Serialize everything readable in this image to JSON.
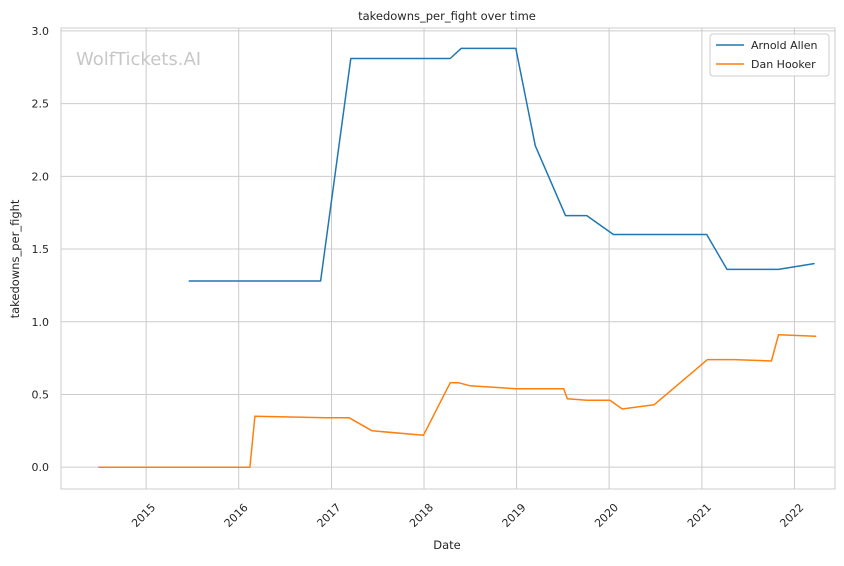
{
  "chart_data": {
    "type": "line",
    "title": "takedowns_per_fight over time",
    "xlabel": "Date",
    "ylabel": "takedowns_per_fight",
    "watermark": "WolfTickets.AI",
    "xlim": [
      "2014-01-30",
      "2022-06-10"
    ],
    "ylim": [
      -0.15,
      3.02
    ],
    "grid": true,
    "legend_position": "top-right",
    "x_ticks": [
      {
        "date": "2015-01-01",
        "label": "2015"
      },
      {
        "date": "2016-01-01",
        "label": "2016"
      },
      {
        "date": "2017-01-01",
        "label": "2017"
      },
      {
        "date": "2018-01-01",
        "label": "2018"
      },
      {
        "date": "2019-01-01",
        "label": "2019"
      },
      {
        "date": "2020-01-01",
        "label": "2020"
      },
      {
        "date": "2021-01-01",
        "label": "2021"
      },
      {
        "date": "2022-01-01",
        "label": "2022"
      }
    ],
    "y_ticks": [
      {
        "value": 0.0,
        "label": "0.0"
      },
      {
        "value": 0.5,
        "label": "0.5"
      },
      {
        "value": 1.0,
        "label": "1.0"
      },
      {
        "value": 1.5,
        "label": "1.5"
      },
      {
        "value": 2.0,
        "label": "2.0"
      },
      {
        "value": 2.5,
        "label": "2.5"
      },
      {
        "value": 3.0,
        "label": "3.0"
      }
    ],
    "series": [
      {
        "name": "Arnold Allen",
        "color": "#1f77b4",
        "points": [
          {
            "x": "2015-06-20",
            "y": 1.28
          },
          {
            "x": "2016-11-19",
            "y": 1.28
          },
          {
            "x": "2017-03-18",
            "y": 2.81
          },
          {
            "x": "2018-04-14",
            "y": 2.81
          },
          {
            "x": "2018-05-27",
            "y": 2.88
          },
          {
            "x": "2018-12-29",
            "y": 2.88
          },
          {
            "x": "2019-03-16",
            "y": 2.21
          },
          {
            "x": "2019-07-13",
            "y": 1.73
          },
          {
            "x": "2019-10-05",
            "y": 1.73
          },
          {
            "x": "2020-01-18",
            "y": 1.6
          },
          {
            "x": "2021-01-20",
            "y": 1.6
          },
          {
            "x": "2021-04-10",
            "y": 1.36
          },
          {
            "x": "2021-10-30",
            "y": 1.36
          },
          {
            "x": "2022-03-19",
            "y": 1.4
          }
        ]
      },
      {
        "name": "Dan Hooker",
        "color": "#ff7f0e",
        "points": [
          {
            "x": "2014-06-28",
            "y": 0.0
          },
          {
            "x": "2016-02-14",
            "y": 0.0
          },
          {
            "x": "2016-03-05",
            "y": 0.35
          },
          {
            "x": "2016-12-10",
            "y": 0.34
          },
          {
            "x": "2017-03-11",
            "y": 0.34
          },
          {
            "x": "2017-06-10",
            "y": 0.25
          },
          {
            "x": "2017-12-30",
            "y": 0.22
          },
          {
            "x": "2018-04-14",
            "y": 0.58
          },
          {
            "x": "2018-05-19",
            "y": 0.58
          },
          {
            "x": "2018-06-30",
            "y": 0.56
          },
          {
            "x": "2018-12-29",
            "y": 0.54
          },
          {
            "x": "2019-07-06",
            "y": 0.54
          },
          {
            "x": "2019-07-20",
            "y": 0.47
          },
          {
            "x": "2019-10-05",
            "y": 0.46
          },
          {
            "x": "2020-01-04",
            "y": 0.46
          },
          {
            "x": "2020-02-22",
            "y": 0.4
          },
          {
            "x": "2020-06-27",
            "y": 0.43
          },
          {
            "x": "2021-01-23",
            "y": 0.74
          },
          {
            "x": "2021-05-08",
            "y": 0.74
          },
          {
            "x": "2021-10-02",
            "y": 0.73
          },
          {
            "x": "2021-10-30",
            "y": 0.91
          },
          {
            "x": "2022-03-26",
            "y": 0.9
          }
        ]
      }
    ]
  }
}
